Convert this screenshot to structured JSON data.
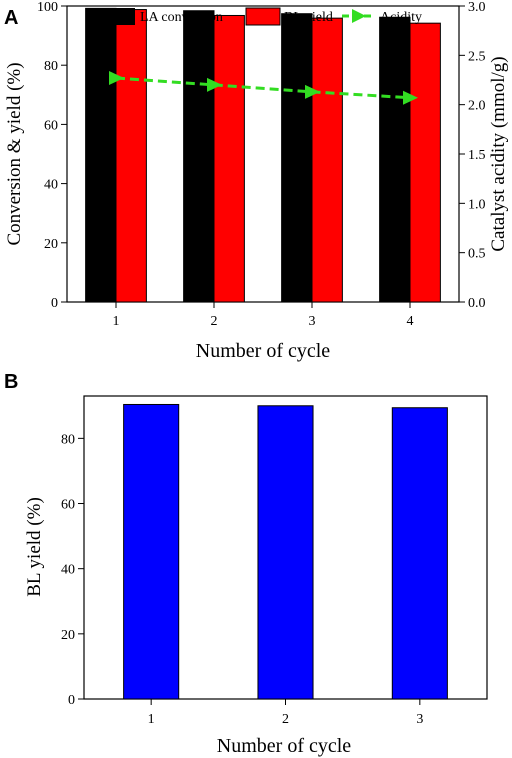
{
  "chart_data": [
    {
      "panel_label": "A",
      "type": "bar",
      "categories": [
        "1",
        "2",
        "3",
        "4"
      ],
      "series": [
        {
          "name": "LA conversion",
          "type": "bar",
          "axis": "left",
          "color": "#000000",
          "values": [
            99.2,
            98.4,
            97.4,
            96.2
          ]
        },
        {
          "name": "BL yield",
          "type": "bar",
          "axis": "left",
          "color": "#ff0000",
          "values": [
            98.8,
            96.8,
            95.9,
            94.2
          ]
        },
        {
          "name": "Acidity",
          "type": "line",
          "axis": "right",
          "color": "#33dd22",
          "marker": "triangle-right",
          "values": [
            2.27,
            2.2,
            2.13,
            2.07
          ]
        }
      ],
      "xlabel": "Number of cycle",
      "ylabel": "Conversion & yield (%)",
      "y2label": "Catalyst acidity (mmol/g)",
      "ylim": [
        0,
        100
      ],
      "yticks": [
        0,
        20,
        40,
        60,
        80,
        100
      ],
      "y2lim": [
        0,
        3.0
      ],
      "y2ticks": [
        "0.0",
        "0.5",
        "1.0",
        "1.5",
        "2.0",
        "2.5",
        "3.0"
      ],
      "legend_position": "top",
      "grid": false
    },
    {
      "panel_label": "B",
      "type": "bar",
      "categories": [
        "1",
        "2",
        "3"
      ],
      "series": [
        {
          "type": "bar",
          "color": "#0000ff",
          "values": [
            90.4,
            90.0,
            89.4
          ]
        }
      ],
      "xlabel": "Number of cycle",
      "ylabel": "BL yield (%)",
      "ylim": [
        0,
        93
      ],
      "yticks": [
        0,
        20,
        40,
        60,
        80
      ],
      "grid": false
    }
  ]
}
